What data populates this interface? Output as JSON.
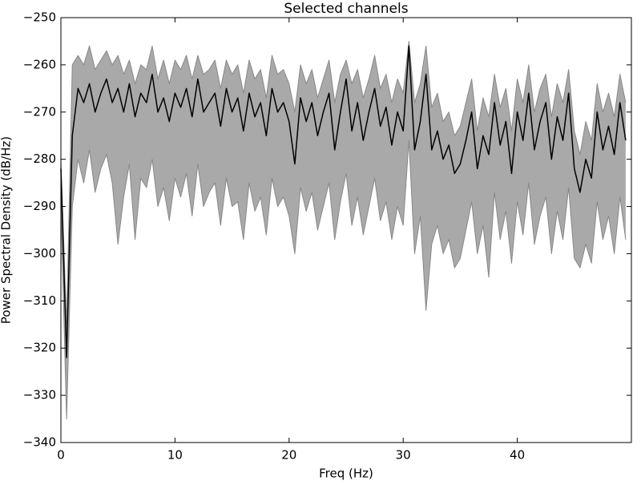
{
  "chart_data": {
    "type": "line_band",
    "title": "Selected channels",
    "xlabel": "Freq (Hz)",
    "ylabel": "Power Spectral Density (dB/Hz)",
    "x": [
      0,
      0.5,
      1,
      1.5,
      2,
      2.5,
      3,
      3.5,
      4,
      4.5,
      5,
      5.5,
      6,
      6.5,
      7,
      7.5,
      8,
      8.5,
      9,
      9.5,
      10,
      10.5,
      11,
      11.5,
      12,
      12.5,
      13,
      13.5,
      14,
      14.5,
      15,
      15.5,
      16,
      16.5,
      17,
      17.5,
      18,
      18.5,
      19,
      19.5,
      20,
      20.5,
      21,
      21.5,
      22,
      22.5,
      23,
      23.5,
      24,
      24.5,
      25,
      25.5,
      26,
      26.5,
      27,
      27.5,
      28,
      28.5,
      29,
      29.5,
      30,
      30.5,
      31,
      31.5,
      32,
      32.5,
      33,
      33.5,
      34,
      34.5,
      35,
      35.5,
      36,
      36.5,
      37,
      37.5,
      38,
      38.5,
      39,
      39.5,
      40,
      40.5,
      41,
      41.5,
      42,
      42.5,
      43,
      43.5,
      44,
      44.5,
      45,
      45.5,
      46,
      46.5,
      47,
      47.5,
      48,
      48.5,
      49,
      49.5
    ],
    "values": [
      -282,
      -322,
      -275,
      -265,
      -268,
      -264,
      -270,
      -266,
      -263,
      -268,
      -265,
      -270,
      -264,
      -271,
      -266,
      -268,
      -262,
      -270,
      -267,
      -272,
      -266,
      -269,
      -265,
      -271,
      -263,
      -270,
      -268,
      -266,
      -273,
      -265,
      -270,
      -267,
      -274,
      -266,
      -271,
      -268,
      -275,
      -265,
      -270,
      -268,
      -272,
      -281,
      -267,
      -272,
      -268,
      -275,
      -270,
      -266,
      -278,
      -270,
      -263,
      -274,
      -268,
      -276,
      -270,
      -265,
      -273,
      -269,
      -277,
      -270,
      -274,
      -256,
      -278,
      -272,
      -262,
      -278,
      -274,
      -280,
      -277,
      -283,
      -281,
      -276,
      -270,
      -282,
      -275,
      -279,
      -268,
      -277,
      -272,
      -283,
      -270,
      -276,
      -266,
      -278,
      -272,
      -268,
      -280,
      -271,
      -276,
      -266,
      -282,
      -287,
      -280,
      -284,
      -270,
      -278,
      -273,
      -279,
      -268,
      -276
    ],
    "upper": [
      -280,
      -315,
      -260,
      -258,
      -260,
      -256,
      -261,
      -259,
      -257,
      -260,
      -258,
      -262,
      -259,
      -264,
      -260,
      -261,
      -256,
      -263,
      -259,
      -264,
      -259,
      -261,
      -258,
      -263,
      -258,
      -262,
      -261,
      -259,
      -265,
      -259,
      -262,
      -260,
      -266,
      -259,
      -263,
      -261,
      -267,
      -258,
      -262,
      -261,
      -264,
      -270,
      -260,
      -264,
      -261,
      -267,
      -263,
      -259,
      -268,
      -262,
      -259,
      -264,
      -261,
      -267,
      -263,
      -258,
      -265,
      -262,
      -268,
      -263,
      -266,
      -255,
      -268,
      -264,
      -256,
      -269,
      -266,
      -272,
      -270,
      -275,
      -273,
      -268,
      -263,
      -274,
      -267,
      -271,
      -262,
      -269,
      -265,
      -274,
      -263,
      -268,
      -260,
      -270,
      -265,
      -262,
      -271,
      -264,
      -268,
      -261,
      -274,
      -279,
      -272,
      -276,
      -264,
      -270,
      -266,
      -271,
      -262,
      -268
    ],
    "lower": [
      -290,
      -335,
      -290,
      -280,
      -285,
      -278,
      -287,
      -282,
      -279,
      -285,
      -298,
      -288,
      -281,
      -297,
      -284,
      -286,
      -280,
      -290,
      -286,
      -293,
      -284,
      -288,
      -283,
      -292,
      -281,
      -290,
      -287,
      -285,
      -294,
      -284,
      -290,
      -289,
      -297,
      -285,
      -291,
      -288,
      -296,
      -284,
      -290,
      -288,
      -292,
      -300,
      -286,
      -291,
      -287,
      -295,
      -290,
      -285,
      -297,
      -289,
      -283,
      -294,
      -288,
      -296,
      -290,
      -284,
      -293,
      -289,
      -297,
      -290,
      -294,
      -276,
      -300,
      -292,
      -312,
      -298,
      -294,
      -300,
      -297,
      -303,
      -301,
      -295,
      -289,
      -300,
      -294,
      -305,
      -287,
      -297,
      -291,
      -302,
      -289,
      -296,
      -285,
      -298,
      -292,
      -288,
      -300,
      -291,
      -297,
      -286,
      -301,
      -303,
      -298,
      -302,
      -289,
      -297,
      -292,
      -300,
      -288,
      -297
    ],
    "color": "#000000",
    "band_color": "#a9a9a9",
    "band_edge_color": "#888888",
    "xlim": [
      0,
      50
    ],
    "xticks": [
      0,
      10,
      20,
      30,
      40
    ],
    "ylim": [
      -340,
      -250
    ],
    "yticks": [
      {
        "value": -340,
        "label": "−340"
      },
      {
        "value": -330,
        "label": "−330"
      },
      {
        "value": -320,
        "label": "−320"
      },
      {
        "value": -310,
        "label": "−310"
      },
      {
        "value": -300,
        "label": "−300"
      },
      {
        "value": -290,
        "label": "−290"
      },
      {
        "value": -280,
        "label": "−280"
      },
      {
        "value": -270,
        "label": "−270"
      },
      {
        "value": -260,
        "label": "−260"
      },
      {
        "value": -250,
        "label": "−250"
      }
    ],
    "grid": false
  }
}
